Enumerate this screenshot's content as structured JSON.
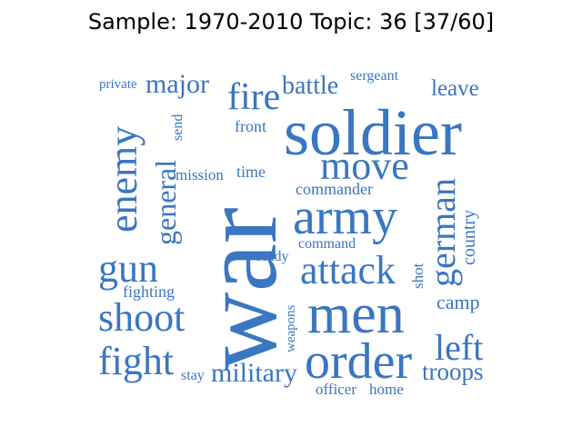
{
  "title": "Sample: 1970-2010 Topic: 36 [37/60]",
  "word_color": "#3a76c1",
  "words": [
    "war",
    "soldier",
    "men",
    "order",
    "army",
    "attack",
    "move",
    "fire",
    "enemy",
    "general",
    "german",
    "shoot",
    "gun",
    "fight",
    "military",
    "left",
    "troops",
    "battle",
    "major",
    "leave",
    "sergeant",
    "private",
    "send",
    "front",
    "mission",
    "time",
    "commander",
    "command",
    "ready",
    "country",
    "shot",
    "camp",
    "fighting",
    "weapons",
    "stay",
    "officer",
    "home"
  ]
}
